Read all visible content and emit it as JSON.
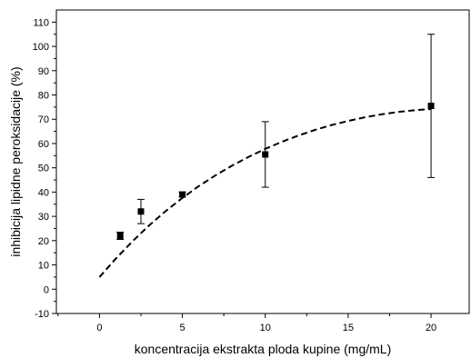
{
  "chart_data": {
    "type": "scatter",
    "title": "",
    "xlabel": "koncentracija ekstrakta ploda kupine (mg/mL)",
    "ylabel": "inhibicija lipidne peroksidacije (%)",
    "xlim": [
      -2.6,
      22.3
    ],
    "ylim": [
      -10,
      115
    ],
    "xticks": [
      0,
      5,
      10,
      15,
      20
    ],
    "yticks": [
      -10,
      0,
      10,
      20,
      30,
      40,
      50,
      60,
      70,
      80,
      90,
      100,
      110
    ],
    "xtick_labels": [
      "0",
      "5",
      "10",
      "15",
      "20"
    ],
    "ytick_labels": [
      "-10",
      "0",
      "10",
      "20",
      "30",
      "40",
      "50",
      "60",
      "70",
      "80",
      "90",
      "100",
      "110"
    ],
    "grid": false,
    "legend": "none",
    "marker": "square",
    "colors": {
      "marks": "#000000",
      "axes": "#000000"
    },
    "points": [
      {
        "x": 1.25,
        "y": 22,
        "err": 1.5
      },
      {
        "x": 2.5,
        "y": 32,
        "err": 5
      },
      {
        "x": 5,
        "y": 39,
        "err": 1
      },
      {
        "x": 10,
        "y": 55.5,
        "err": 13.5
      },
      {
        "x": 20,
        "y": 75.5,
        "err": 29.5
      }
    ],
    "fit_curve": {
      "style": "dashed",
      "x": [
        0,
        1,
        2,
        3,
        4,
        5,
        6,
        7,
        8,
        9,
        10,
        11,
        12,
        13,
        14,
        15,
        16,
        17,
        18,
        19,
        20
      ],
      "y": [
        5,
        12.7,
        19.8,
        26.3,
        32.2,
        37.6,
        42.5,
        46.9,
        50.9,
        54.5,
        57.8,
        60.7,
        63.3,
        65.6,
        67.6,
        69.3,
        70.8,
        72,
        73,
        73.7,
        74.2
      ]
    }
  }
}
